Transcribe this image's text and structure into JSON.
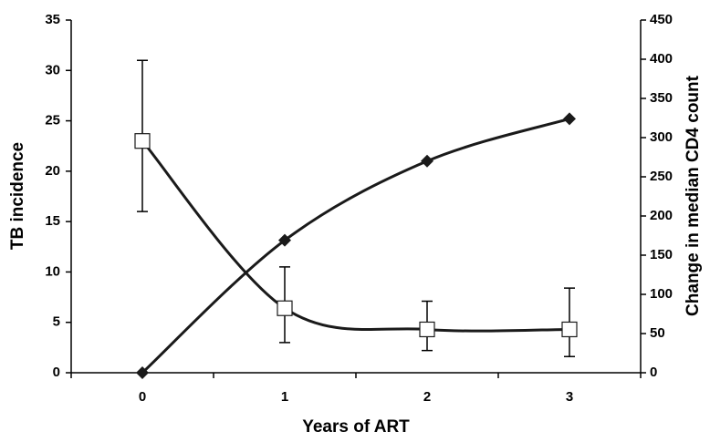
{
  "chart_data": {
    "type": "line",
    "x_label": "Years of ART",
    "y_label": "TB incidence",
    "y2_label": "Change in median CD4 count",
    "categories": [
      "0",
      "1",
      "2",
      "3"
    ],
    "series": [
      {
        "color": "#1a1a1a",
        "marker": "square",
        "smooth": true,
        "values": [
          23,
          6.4,
          4.3,
          4.3
        ],
        "lower": [
          16,
          3,
          2.2,
          1.6
        ],
        "upper": [
          31,
          10.5,
          7.1,
          8.4
        ]
      },
      {
        "color": "#1a1a1a",
        "marker": "diamond",
        "smooth": true,
        "axis": "y2",
        "values": [
          0,
          169,
          270,
          324
        ]
      }
    ],
    "ylim": [
      0,
      35
    ],
    "yticks": [
      0,
      5,
      10,
      15,
      20,
      25,
      30,
      35
    ],
    "y2lim": [
      0,
      450
    ],
    "y2ticks": [
      0,
      50,
      100,
      150,
      200,
      250,
      300,
      350,
      400,
      450
    ],
    "grid": false
  }
}
